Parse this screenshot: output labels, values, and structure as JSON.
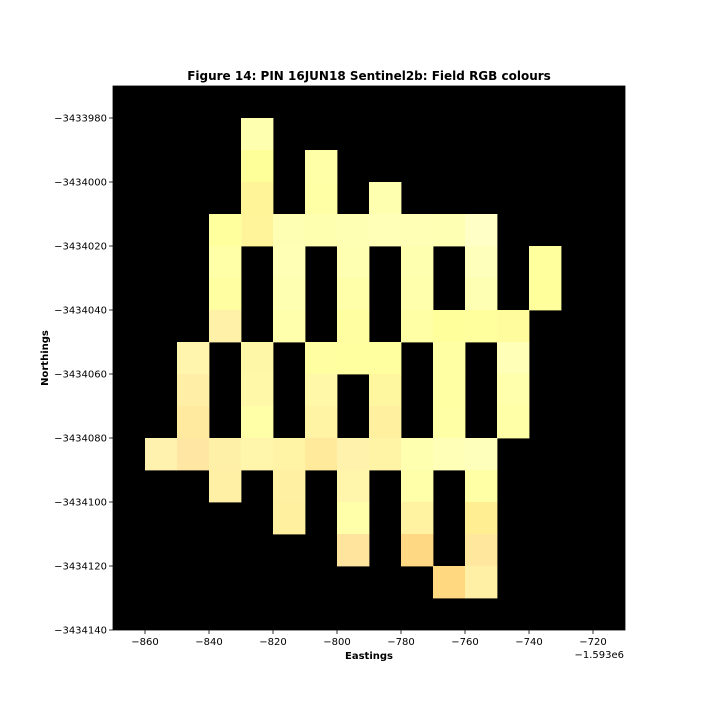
{
  "chart_data": {
    "type": "heatmap",
    "title": "Figure 14: PIN 16JUN18  Sentinel2b: Field RGB colours",
    "xlabel": "Eastings",
    "ylabel": "Northings",
    "x_offset_label": "−1.593e6",
    "xlim": [
      -870,
      -710
    ],
    "ylim": [
      -3434140,
      -3433970
    ],
    "x_ticks": [
      -860,
      -840,
      -820,
      -800,
      -780,
      -760,
      -740,
      -720
    ],
    "x_tick_labels": [
      "−860",
      "−840",
      "−820",
      "−800",
      "−780",
      "−760",
      "−740",
      "−720"
    ],
    "y_ticks": [
      -3433980,
      -3434000,
      -3434020,
      -3434040,
      -3434060,
      -3434080,
      -3434100,
      -3434120,
      -3434140
    ],
    "y_tick_labels": [
      "−3433980",
      "−3434000",
      "−3434020",
      "−3434040",
      "−3434060",
      "−3434080",
      "−3434100",
      "−3434120",
      "−3434140"
    ],
    "background_color": "#000000",
    "pixel_size": 10,
    "pixels": [
      {
        "x": -830,
        "y": -3433980,
        "color": "#ffffb0"
      },
      {
        "x": -830,
        "y": -3433990,
        "color": "#ffff9a"
      },
      {
        "x": -830,
        "y": -3434000,
        "color": "#fff598"
      },
      {
        "x": -830,
        "y": -3434010,
        "color": "#fff49a"
      },
      {
        "x": -810,
        "y": -3433990,
        "color": "#ffffa8"
      },
      {
        "x": -810,
        "y": -3434000,
        "color": "#ffffa6"
      },
      {
        "x": -790,
        "y": -3434000,
        "color": "#ffffb0"
      },
      {
        "x": -840,
        "y": -3434010,
        "color": "#ffff9e"
      },
      {
        "x": -820,
        "y": -3434010,
        "color": "#ffffb4"
      },
      {
        "x": -810,
        "y": -3434010,
        "color": "#ffffb0"
      },
      {
        "x": -800,
        "y": -3434010,
        "color": "#ffffb4"
      },
      {
        "x": -790,
        "y": -3434010,
        "color": "#ffffb8"
      },
      {
        "x": -780,
        "y": -3434010,
        "color": "#ffffb6"
      },
      {
        "x": -770,
        "y": -3434010,
        "color": "#ffffb4"
      },
      {
        "x": -760,
        "y": -3434010,
        "color": "#ffffc6"
      },
      {
        "x": -840,
        "y": -3434020,
        "color": "#ffffa8"
      },
      {
        "x": -820,
        "y": -3434020,
        "color": "#ffffb6"
      },
      {
        "x": -800,
        "y": -3434020,
        "color": "#ffffb2"
      },
      {
        "x": -780,
        "y": -3434020,
        "color": "#ffffb0"
      },
      {
        "x": -760,
        "y": -3434020,
        "color": "#ffffbc"
      },
      {
        "x": -740,
        "y": -3434020,
        "color": "#ffff9e"
      },
      {
        "x": -840,
        "y": -3434030,
        "color": "#ffffa2"
      },
      {
        "x": -820,
        "y": -3434030,
        "color": "#ffffb2"
      },
      {
        "x": -800,
        "y": -3434030,
        "color": "#ffffaa"
      },
      {
        "x": -780,
        "y": -3434030,
        "color": "#ffffac"
      },
      {
        "x": -760,
        "y": -3434030,
        "color": "#ffffb4"
      },
      {
        "x": -740,
        "y": -3434030,
        "color": "#ffff9c"
      },
      {
        "x": -840,
        "y": -3434040,
        "color": "#fff2a8"
      },
      {
        "x": -820,
        "y": -3434040,
        "color": "#ffffac"
      },
      {
        "x": -800,
        "y": -3434040,
        "color": "#ffffa2"
      },
      {
        "x": -780,
        "y": -3434040,
        "color": "#ffffa6"
      },
      {
        "x": -770,
        "y": -3434040,
        "color": "#ffff9c"
      },
      {
        "x": -760,
        "y": -3434040,
        "color": "#ffff9e"
      },
      {
        "x": -750,
        "y": -3434040,
        "color": "#fffc9e"
      },
      {
        "x": -850,
        "y": -3434050,
        "color": "#fff5ac"
      },
      {
        "x": -830,
        "y": -3434050,
        "color": "#fff7a8"
      },
      {
        "x": -810,
        "y": -3434050,
        "color": "#ffffa2"
      },
      {
        "x": -800,
        "y": -3434050,
        "color": "#ffffa0"
      },
      {
        "x": -790,
        "y": -3434050,
        "color": "#ffffa0"
      },
      {
        "x": -770,
        "y": -3434050,
        "color": "#ffffa4"
      },
      {
        "x": -750,
        "y": -3434050,
        "color": "#ffffb8"
      },
      {
        "x": -850,
        "y": -3434060,
        "color": "#ffeea6"
      },
      {
        "x": -830,
        "y": -3434060,
        "color": "#fff8a8"
      },
      {
        "x": -810,
        "y": -3434060,
        "color": "#fff8a8"
      },
      {
        "x": -790,
        "y": -3434060,
        "color": "#fff7a0"
      },
      {
        "x": -770,
        "y": -3434060,
        "color": "#ffffa4"
      },
      {
        "x": -750,
        "y": -3434060,
        "color": "#ffffac"
      },
      {
        "x": -850,
        "y": -3434070,
        "color": "#ffeaa0"
      },
      {
        "x": -830,
        "y": -3434070,
        "color": "#ffffa8"
      },
      {
        "x": -810,
        "y": -3434070,
        "color": "#fff3a4"
      },
      {
        "x": -790,
        "y": -3434070,
        "color": "#fff0a0"
      },
      {
        "x": -770,
        "y": -3434070,
        "color": "#ffffa6"
      },
      {
        "x": -750,
        "y": -3434070,
        "color": "#ffffa8"
      },
      {
        "x": -860,
        "y": -3434080,
        "color": "#fff2ae"
      },
      {
        "x": -850,
        "y": -3434080,
        "color": "#ffe6a2"
      },
      {
        "x": -840,
        "y": -3434080,
        "color": "#fff0a8"
      },
      {
        "x": -830,
        "y": -3434080,
        "color": "#fff6ac"
      },
      {
        "x": -820,
        "y": -3434080,
        "color": "#fff4a6"
      },
      {
        "x": -810,
        "y": -3434080,
        "color": "#ffea9c"
      },
      {
        "x": -800,
        "y": -3434080,
        "color": "#fff2ac"
      },
      {
        "x": -790,
        "y": -3434080,
        "color": "#fff3a6"
      },
      {
        "x": -780,
        "y": -3434080,
        "color": "#ffffb0"
      },
      {
        "x": -770,
        "y": -3434080,
        "color": "#ffffb8"
      },
      {
        "x": -760,
        "y": -3434080,
        "color": "#ffffbc"
      },
      {
        "x": -840,
        "y": -3434090,
        "color": "#fff0a6"
      },
      {
        "x": -820,
        "y": -3434090,
        "color": "#fff0a2"
      },
      {
        "x": -800,
        "y": -3434090,
        "color": "#fff6ac"
      },
      {
        "x": -780,
        "y": -3434090,
        "color": "#ffffaa"
      },
      {
        "x": -760,
        "y": -3434090,
        "color": "#ffffa6"
      },
      {
        "x": -820,
        "y": -3434100,
        "color": "#fff0a0"
      },
      {
        "x": -800,
        "y": -3434100,
        "color": "#ffffaa"
      },
      {
        "x": -780,
        "y": -3434100,
        "color": "#fff3a2"
      },
      {
        "x": -760,
        "y": -3434100,
        "color": "#ffef92"
      },
      {
        "x": -800,
        "y": -3434110,
        "color": "#ffe49e"
      },
      {
        "x": -780,
        "y": -3434110,
        "color": "#ffd884"
      },
      {
        "x": -760,
        "y": -3434110,
        "color": "#ffe89e"
      },
      {
        "x": -770,
        "y": -3434120,
        "color": "#ffd880"
      },
      {
        "x": -760,
        "y": -3434120,
        "color": "#fff0a6"
      }
    ]
  }
}
